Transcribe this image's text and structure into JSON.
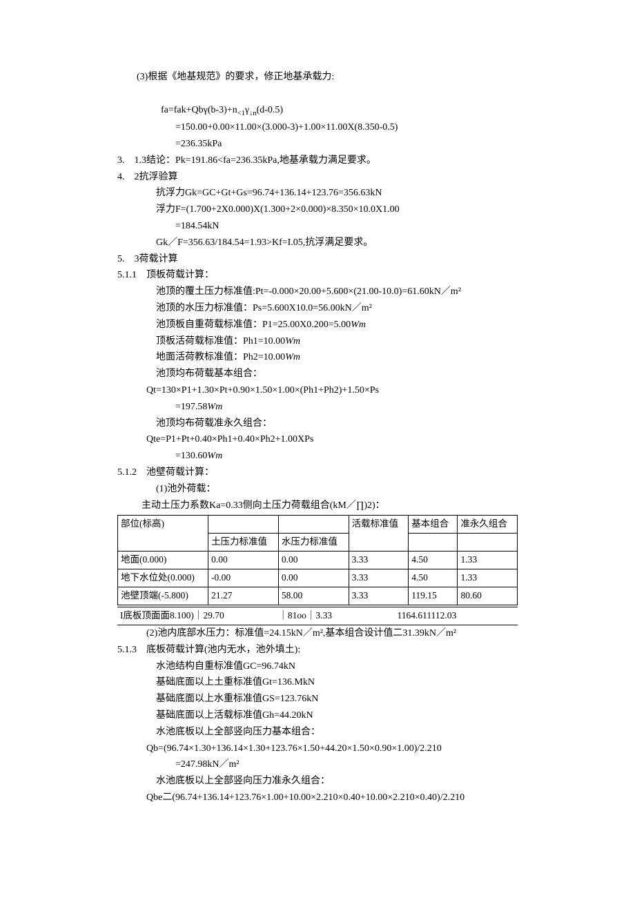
{
  "p1": "(3)根据《地基规范》的要求，修正地基承载力:",
  "p2_a": "fa=fak+Qbγ(b-3)+n",
  "p2_sub": "<1",
  "p2_b": "γ",
  "p2_sub2": "↓n",
  "p2_c": "(d-0.5)",
  "p3": "=150.00+0.00×11.00×(3.000-3)+1.00×11.00X(8.350-0.5)",
  "p4": "=236.35kPa",
  "p5": "3.　1.3结论：Pk=191.86<fa=236.35kPa,地基承载力满足要求。",
  "p6": "4.　2抗浮验算",
  "p7": "抗浮力Gk=GC+Gt+Gs=96.74+136.14+123.76=356.63kN",
  "p8": "浮力F=(1.700+2X0.000)X(1.300+2×0.000)×8.350×10.0X1.00",
  "p9": "=184.54kN",
  "p10": "Gk／F=356.63/184.54=1.93>Kf=I.05,抗浮满足要求。",
  "p11": "5.　3荷载计算",
  "p12": "5.1.1　顶板荷载计算：",
  "p13": "池顶的覆土压力标准值:Pt=-0.000×20.00+5.600×(21.00-10.0)=61.60kN／m²",
  "p14": "池顶的水压力标准值：Ps=5.600X10.0=56.00kN／m²",
  "p15_a": "池顶板自重荷载标准值：P1=25.00X0.200=5.00",
  "p15_b": "Wm",
  "p16_a": "顶板活荷载标准值：Ph1=10.00",
  "p16_b": "Wm",
  "p17_a": "地面活荷教标准值：Ph2=10.00",
  "p17_b": "Wm",
  "p18": "池顶均布荷载基本组合：",
  "p19": "Qt=130×P1+1.30×Pt+0.90×1.50×1.00×(Ph1+Ph2)+1.50×Ps",
  "p20_a": "=197.58",
  "p20_b": "Wm",
  "p21": "池顶均布荷载准永久组合：",
  "p22": "Qte=P1+Pt+0.40×Ph1+0.40×Ph2+1.00XPs",
  "p23_a": "=130.60",
  "p23_b": "Wm",
  "p24": "5.1.2　池壁荷载计算：",
  "p25": "(1)池外荷载：",
  "p26": "主动土压力系数Ka=0.33侧向土压力荷载组合(kM／∏)2)：",
  "tbl": {
    "h": [
      "部位(标高)",
      "土压力标准值",
      "水压力标准值",
      "活载标准值",
      "基本组合",
      "准永久组合"
    ],
    "r1": [
      "地面(0.000)",
      "0.00",
      "0.00",
      "3.33",
      "4.50",
      "1.33"
    ],
    "r2": [
      "地下水位处(0.000)",
      "-0.00",
      "0.00",
      "3.33",
      "4.50",
      "1.33"
    ],
    "r3": [
      "池壁顶端(-5.800)",
      "21.27",
      "58.00",
      "3.33",
      "119.15",
      "80.60"
    ]
  },
  "brow": {
    "s1": "I底板顶面面8.100)｜29.70",
    "s2": "｜81oo｜3.33",
    "s3": "1164.611112.03"
  },
  "p27": "(2)池内底部水压力：标准值=24.15kN／m²,基本组合设计值二31.39kN／m²",
  "p28": "5.1.3　底板荷载计算(池内无水，池外填土):",
  "p29": "水池结构自重标准值GC=96.74kN",
  "p30": "基础底面以上土重标准值Gt=136.MkN",
  "p31": "基础底面以上水重标准值GS=123.76kN",
  "p32": "基础底面以上活载标准值Gh=44.20kN",
  "p33": "水池底板以上全部竖向压力基本组合：",
  "p34": "Qb=(96.74×1.30+136.14×1.30+123.76×1.50+44.20×1.50×0.90×1.00)/2.210",
  "p35": "=247.98kN／m²",
  "p36": "水池底板以上全部竖向压力准永久组合：",
  "p37": "Qbe二(96.74+136.14+123.76×1.00+10.00×2.210×0.40+10.00×2.210×0.40)/2.210"
}
